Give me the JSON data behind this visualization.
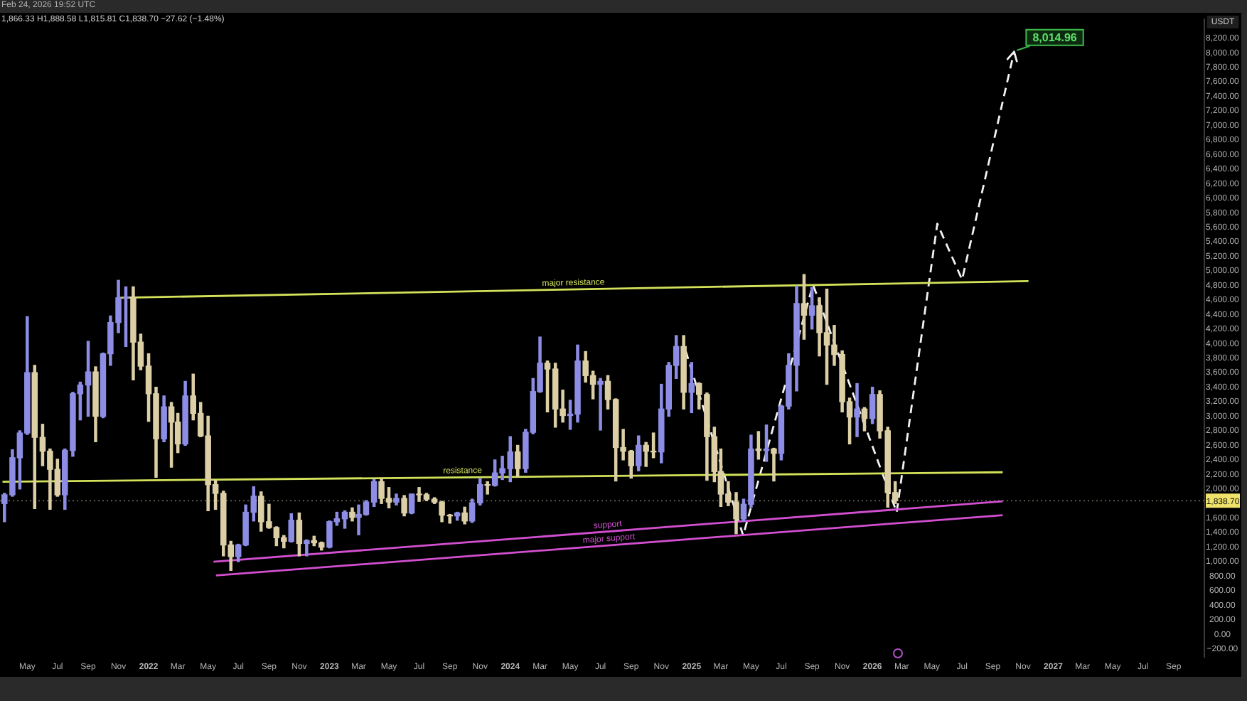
{
  "chart_data": {
    "type": "candlestick",
    "title": "Feb 24, 2026 19:52 UTC",
    "subtitle": "1,866.33 H1,888.58 L1,815.81 C1,838.70 −27.62 (−1.48%)",
    "ylabel": "USDT",
    "x": [
      "2021-03-16",
      "2021-04-01",
      "2021-04-16",
      "2021-05-01",
      "2021-05-16",
      "2021-06-01",
      "2021-06-16",
      "2021-07-01",
      "2021-07-16",
      "2021-08-01",
      "2021-08-16",
      "2021-09-01",
      "2021-09-16",
      "2021-10-01",
      "2021-10-16",
      "2021-11-01",
      "2021-11-16",
      "2021-12-01",
      "2021-12-16",
      "2022-01-01",
      "2022-01-16",
      "2022-02-01",
      "2022-02-16",
      "2022-03-01",
      "2022-03-16",
      "2022-04-01",
      "2022-04-16",
      "2022-05-01",
      "2022-05-16",
      "2022-06-01",
      "2022-06-16",
      "2022-07-01",
      "2022-07-16",
      "2022-08-01",
      "2022-08-16",
      "2022-09-01",
      "2022-09-16",
      "2022-10-01",
      "2022-10-16",
      "2022-11-01",
      "2022-11-16",
      "2022-12-01",
      "2022-12-16",
      "2023-01-01",
      "2023-01-16",
      "2023-02-01",
      "2023-02-16",
      "2023-03-01",
      "2023-03-16",
      "2023-04-01",
      "2023-04-16",
      "2023-05-01",
      "2023-05-16",
      "2023-06-01",
      "2023-06-16",
      "2023-07-01",
      "2023-07-16",
      "2023-08-01",
      "2023-08-16",
      "2023-09-01",
      "2023-09-16",
      "2023-10-01",
      "2023-10-16",
      "2023-11-01",
      "2023-11-16",
      "2023-12-01",
      "2023-12-16",
      "2024-01-01",
      "2024-01-16",
      "2024-02-01",
      "2024-02-16",
      "2024-03-01",
      "2024-03-16",
      "2024-04-01",
      "2024-04-16",
      "2024-05-01",
      "2024-05-16",
      "2024-06-01",
      "2024-06-16",
      "2024-07-01",
      "2024-07-16",
      "2024-08-01",
      "2024-08-16",
      "2024-09-01",
      "2024-09-16",
      "2024-10-01",
      "2024-10-16",
      "2024-11-01",
      "2024-11-16",
      "2024-12-01",
      "2024-12-16",
      "2025-01-01",
      "2025-01-16",
      "2025-02-01",
      "2025-02-16",
      "2025-03-01",
      "2025-03-16",
      "2025-04-01",
      "2025-04-16",
      "2025-05-01",
      "2025-05-16",
      "2025-06-01",
      "2025-06-16",
      "2025-07-01",
      "2025-07-16",
      "2025-08-01",
      "2025-08-16",
      "2025-09-01",
      "2025-09-16",
      "2025-10-01",
      "2025-10-16",
      "2025-11-01",
      "2025-11-16",
      "2025-12-01",
      "2025-12-16",
      "2026-01-01",
      "2026-01-16",
      "2026-02-01",
      "2026-02-16"
    ],
    "ohlc": [
      [
        1800,
        1940,
        1550,
        1920
      ],
      [
        1920,
        2540,
        1900,
        2430
      ],
      [
        2430,
        2800,
        2000,
        2770
      ],
      [
        2770,
        4370,
        2750,
        3600
      ],
      [
        3600,
        3700,
        1730,
        2710
      ],
      [
        2710,
        2890,
        2320,
        2520
      ],
      [
        2520,
        2550,
        1720,
        2270
      ],
      [
        2270,
        2410,
        1900,
        1920
      ],
      [
        1920,
        2550,
        1720,
        2530
      ],
      [
        2530,
        3330,
        2450,
        3310
      ],
      [
        3310,
        3470,
        2950,
        3430
      ],
      [
        3430,
        4030,
        3000,
        3610
      ],
      [
        3610,
        3680,
        2650,
        3000
      ],
      [
        3000,
        3870,
        2980,
        3860
      ],
      [
        3860,
        4380,
        3700,
        4290
      ],
      [
        4290,
        4870,
        4150,
        4630
      ],
      [
        4630,
        4780,
        3960,
        4640
      ],
      [
        4640,
        4780,
        3500,
        4020
      ],
      [
        4020,
        4130,
        3640,
        3690
      ],
      [
        3690,
        3860,
        2930,
        3310
      ],
      [
        3310,
        3400,
        2160,
        2690
      ],
      [
        2690,
        3280,
        2650,
        3130
      ],
      [
        3130,
        3190,
        2300,
        2920
      ],
      [
        2920,
        3040,
        2500,
        2620
      ],
      [
        2620,
        3480,
        2600,
        3280
      ],
      [
        3280,
        3580,
        2950,
        3040
      ],
      [
        3040,
        3190,
        2720,
        2730
      ],
      [
        2730,
        3000,
        1700,
        2060
      ],
      [
        2060,
        2120,
        1720,
        1940
      ],
      [
        1940,
        1970,
        1080,
        1230
      ],
      [
        1230,
        1280,
        880,
        1070
      ],
      [
        1070,
        1240,
        1000,
        1230
      ],
      [
        1230,
        1780,
        1220,
        1680
      ],
      [
        1680,
        2030,
        1560,
        1900
      ],
      [
        1900,
        1960,
        1420,
        1550
      ],
      [
        1550,
        1790,
        1460,
        1470
      ],
      [
        1470,
        1480,
        1220,
        1330
      ],
      [
        1330,
        1360,
        1190,
        1280
      ],
      [
        1280,
        1660,
        1270,
        1570
      ],
      [
        1570,
        1670,
        1080,
        1250
      ],
      [
        1250,
        1300,
        1080,
        1290
      ],
      [
        1290,
        1350,
        1220,
        1260
      ],
      [
        1260,
        1270,
        1160,
        1200
      ],
      [
        1200,
        1560,
        1190,
        1550
      ],
      [
        1550,
        1680,
        1500,
        1590
      ],
      [
        1590,
        1700,
        1460,
        1680
      ],
      [
        1680,
        1740,
        1560,
        1610
      ],
      [
        1610,
        1780,
        1370,
        1650
      ],
      [
        1650,
        1840,
        1640,
        1820
      ],
      [
        1820,
        2130,
        1760,
        2100
      ],
      [
        2100,
        2140,
        1800,
        1870
      ],
      [
        1870,
        2020,
        1740,
        1820
      ],
      [
        1820,
        1930,
        1780,
        1870
      ],
      [
        1870,
        1910,
        1630,
        1670
      ],
      [
        1670,
        1930,
        1660,
        1930
      ],
      [
        1930,
        2020,
        1830,
        1920
      ],
      [
        1920,
        1940,
        1840,
        1860
      ],
      [
        1860,
        1880,
        1800,
        1820
      ],
      [
        1820,
        1830,
        1550,
        1640
      ],
      [
        1640,
        1650,
        1530,
        1630
      ],
      [
        1630,
        1680,
        1570,
        1670
      ],
      [
        1670,
        1750,
        1520,
        1560
      ],
      [
        1560,
        1860,
        1540,
        1810
      ],
      [
        1810,
        2140,
        1780,
        2060
      ],
      [
        2060,
        2100,
        1930,
        2050
      ],
      [
        2050,
        2400,
        2040,
        2220
      ],
      [
        2220,
        2450,
        2130,
        2280
      ],
      [
        2280,
        2720,
        2100,
        2510
      ],
      [
        2510,
        2600,
        2170,
        2280
      ],
      [
        2280,
        2820,
        2230,
        2780
      ],
      [
        2780,
        3520,
        2760,
        3340
      ],
      [
        3340,
        4090,
        3330,
        3730
      ],
      [
        3730,
        3760,
        3060,
        3650
      ],
      [
        3650,
        3730,
        2850,
        3100
      ],
      [
        3100,
        3360,
        2920,
        3010
      ],
      [
        3010,
        3220,
        2820,
        3030
      ],
      [
        3030,
        3980,
        2920,
        3760
      ],
      [
        3760,
        3890,
        3470,
        3560
      ],
      [
        3560,
        3620,
        3240,
        3440
      ],
      [
        3440,
        3520,
        2810,
        3480
      ],
      [
        3480,
        3560,
        3100,
        3230
      ],
      [
        3230,
        3240,
        2110,
        2570
      ],
      [
        2570,
        2820,
        2400,
        2520
      ],
      [
        2520,
        2530,
        2150,
        2320
      ],
      [
        2320,
        2730,
        2250,
        2600
      ],
      [
        2600,
        2640,
        2310,
        2520
      ],
      [
        2520,
        2770,
        2430,
        2510
      ],
      [
        2510,
        3440,
        2360,
        3100
      ],
      [
        3100,
        3740,
        3000,
        3700
      ],
      [
        3700,
        4110,
        3520,
        3960
      ],
      [
        3960,
        4110,
        3100,
        3330
      ],
      [
        3330,
        3740,
        3050,
        3450
      ],
      [
        3450,
        3460,
        3100,
        3300
      ],
      [
        3300,
        3320,
        2120,
        2720
      ],
      [
        2720,
        2850,
        2100,
        2240
      ],
      [
        2240,
        2550,
        1760,
        1930
      ],
      [
        1930,
        2100,
        1770,
        1820
      ],
      [
        1820,
        1950,
        1385,
        1590
      ],
      [
        1590,
        1860,
        1560,
        1790
      ],
      [
        1790,
        2740,
        1750,
        2550
      ],
      [
        2550,
        2790,
        2410,
        2530
      ],
      [
        2530,
        2880,
        2380,
        2550
      ],
      [
        2550,
        2560,
        2110,
        2490
      ],
      [
        2490,
        3150,
        2400,
        3140
      ],
      [
        3140,
        3860,
        3100,
        3700
      ],
      [
        3700,
        4790,
        3350,
        4550
      ],
      [
        4550,
        4950,
        4060,
        4390
      ],
      [
        4390,
        4770,
        4200,
        4520
      ],
      [
        4520,
        4630,
        3830,
        4150
      ],
      [
        4150,
        4750,
        3440,
        3980
      ],
      [
        3980,
        4250,
        3700,
        3850
      ],
      [
        3850,
        3900,
        3060,
        3200
      ],
      [
        3200,
        3250,
        2620,
        2990
      ],
      [
        2990,
        3450,
        2720,
        3100
      ],
      [
        3100,
        3120,
        2800,
        2970
      ],
      [
        2970,
        3400,
        2900,
        3300
      ],
      [
        3300,
        3350,
        2700,
        2800
      ],
      [
        2800,
        2850,
        1750,
        1950
      ],
      [
        1950,
        2100,
        1800,
        1838.7
      ]
    ],
    "colors": [
      "#8d8de6",
      "#8d8de6",
      "#8d8de6",
      "#8d8de6",
      "#dccfa5",
      "#dccfa5",
      "#dccfa5",
      "#dccfa5",
      "#8d8de6",
      "#8d8de6",
      "#8d8de6",
      "#8d8de6",
      "#dccfa5",
      "#8d8de6",
      "#8d8de6",
      "#8d8de6",
      "#8d8de6",
      "#dccfa5",
      "#dccfa5",
      "#dccfa5",
      "#dccfa5",
      "#8d8de6",
      "#dccfa5",
      "#dccfa5",
      "#8d8de6",
      "#dccfa5",
      "#dccfa5",
      "#dccfa5",
      "#dccfa5",
      "#dccfa5",
      "#dccfa5",
      "#8d8de6",
      "#8d8de6",
      "#8d8de6",
      "#dccfa5",
      "#dccfa5",
      "#dccfa5",
      "#dccfa5",
      "#8d8de6",
      "#dccfa5",
      "#8d8de6",
      "#dccfa5",
      "#dccfa5",
      "#8d8de6",
      "#8d8de6",
      "#8d8de6",
      "#dccfa5",
      "#8d8de6",
      "#8d8de6",
      "#8d8de6",
      "#dccfa5",
      "#dccfa5",
      "#8d8de6",
      "#dccfa5",
      "#8d8de6",
      "#dccfa5",
      "#dccfa5",
      "#dccfa5",
      "#dccfa5",
      "#dccfa5",
      "#8d8de6",
      "#dccfa5",
      "#8d8de6",
      "#8d8de6",
      "#dccfa5",
      "#8d8de6",
      "#8d8de6",
      "#8d8de6",
      "#dccfa5",
      "#8d8de6",
      "#8d8de6",
      "#8d8de6",
      "#dccfa5",
      "#dccfa5",
      "#dccfa5",
      "#8d8de6",
      "#8d8de6",
      "#dccfa5",
      "#dccfa5",
      "#8d8de6",
      "#dccfa5",
      "#dccfa5",
      "#dccfa5",
      "#dccfa5",
      "#8d8de6",
      "#dccfa5",
      "#dccfa5",
      "#8d8de6",
      "#8d8de6",
      "#8d8de6",
      "#dccfa5",
      "#8d8de6",
      "#dccfa5",
      "#dccfa5",
      "#dccfa5",
      "#dccfa5",
      "#dccfa5",
      "#dccfa5",
      "#8d8de6",
      "#8d8de6",
      "#dccfa5",
      "#8d8de6",
      "#dccfa5",
      "#8d8de6",
      "#8d8de6",
      "#8d8de6",
      "#dccfa5",
      "#8d8de6",
      "#dccfa5",
      "#dccfa5",
      "#dccfa5",
      "#dccfa5",
      "#dccfa5",
      "#8d8de6",
      "#dccfa5",
      "#8d8de6",
      "#dccfa5",
      "#dccfa5",
      "#dccfa5"
    ],
    "series": [
      {
        "type": "line",
        "name": "major resistance",
        "color": "#d3e25a",
        "x": [
          "2021-11-01",
          "2026-11-12"
        ],
        "values": [
          4630,
          4860
        ]
      },
      {
        "type": "line",
        "name": "resistance",
        "color": "#d3e25a",
        "x": [
          "2021-03-12",
          "2026-09-21"
        ],
        "values": [
          2100,
          2230
        ]
      },
      {
        "type": "line",
        "name": "support",
        "color": "#d24fd0",
        "x": [
          "2022-05-12",
          "2026-09-21"
        ],
        "values": [
          1000,
          1830
        ]
      },
      {
        "type": "line",
        "name": "major support",
        "color": "#d24fd0",
        "x": [
          "2022-05-17",
          "2026-09-21"
        ],
        "values": [
          810,
          1640
        ]
      },
      {
        "type": "line",
        "color": "#f2f2f2",
        "line_style": "dashed",
        "x": [
          "2024-12-20",
          "2025-04-15",
          "2025-09-03",
          "2026-02-19",
          "2026-05-12",
          "2026-07-01",
          "2026-10-14"
        ],
        "values": [
          3900,
          1360,
          4810,
          1680,
          5650,
          4880,
          8014.96
        ]
      }
    ],
    "xlim": [
      "2021-03-07",
      "2027-11-02"
    ],
    "xticks": [
      {
        "value": "2021-05-01",
        "label": "May"
      },
      {
        "value": "2021-07-01",
        "label": "Jul"
      },
      {
        "value": "2021-09-01",
        "label": "Sep"
      },
      {
        "value": "2021-11-01",
        "label": "Nov"
      },
      {
        "value": "2022-01-01",
        "label": "2022"
      },
      {
        "value": "2022-03-01",
        "label": "Mar"
      },
      {
        "value": "2022-05-01",
        "label": "May"
      },
      {
        "value": "2022-07-01",
        "label": "Jul"
      },
      {
        "value": "2022-09-01",
        "label": "Sep"
      },
      {
        "value": "2022-11-01",
        "label": "Nov"
      },
      {
        "value": "2023-01-01",
        "label": "2023"
      },
      {
        "value": "2023-03-01",
        "label": "Mar"
      },
      {
        "value": "2023-05-01",
        "label": "May"
      },
      {
        "value": "2023-07-01",
        "label": "Jul"
      },
      {
        "value": "2023-09-01",
        "label": "Sep"
      },
      {
        "value": "2023-11-01",
        "label": "Nov"
      },
      {
        "value": "2024-01-01",
        "label": "2024"
      },
      {
        "value": "2024-03-01",
        "label": "Mar"
      },
      {
        "value": "2024-05-01",
        "label": "May"
      },
      {
        "value": "2024-07-01",
        "label": "Jul"
      },
      {
        "value": "2024-09-01",
        "label": "Sep"
      },
      {
        "value": "2024-11-01",
        "label": "Nov"
      },
      {
        "value": "2025-01-01",
        "label": "2025"
      },
      {
        "value": "2025-03-01",
        "label": "Mar"
      },
      {
        "value": "2025-05-01",
        "label": "May"
      },
      {
        "value": "2025-07-01",
        "label": "Jul"
      },
      {
        "value": "2025-09-01",
        "label": "Sep"
      },
      {
        "value": "2025-11-01",
        "label": "Nov"
      },
      {
        "value": "2026-01-01",
        "label": "2026"
      },
      {
        "value": "2026-03-01",
        "label": "Mar"
      },
      {
        "value": "2026-05-01",
        "label": "May"
      },
      {
        "value": "2026-07-01",
        "label": "Jul"
      },
      {
        "value": "2026-09-01",
        "label": "Sep"
      },
      {
        "value": "2026-11-01",
        "label": "Nov"
      },
      {
        "value": "2027-01-01",
        "label": "2027"
      },
      {
        "value": "2027-03-01",
        "label": "Mar"
      },
      {
        "value": "2027-05-01",
        "label": "May"
      },
      {
        "value": "2027-07-01",
        "label": "Jul"
      },
      {
        "value": "2027-09-01",
        "label": "Sep"
      }
    ],
    "ylim": [
      -310,
      8460
    ],
    "yticks": [
      {
        "value": -200,
        "label": "−200.00"
      },
      {
        "value": 0,
        "label": "0.00"
      },
      {
        "value": 200,
        "label": "200.00"
      },
      {
        "value": 400,
        "label": "400.00"
      },
      {
        "value": 600,
        "label": "600.00"
      },
      {
        "value": 800,
        "label": "800.00"
      },
      {
        "value": 1000,
        "label": "1,000.00"
      },
      {
        "value": 1200,
        "label": "1,200.00"
      },
      {
        "value": 1400,
        "label": "1,400.00"
      },
      {
        "value": 1600,
        "label": "1,600.00"
      },
      {
        "value": 2000,
        "label": "2,000.00"
      },
      {
        "value": 2200,
        "label": "2,200.00"
      },
      {
        "value": 2400,
        "label": "2,400.00"
      },
      {
        "value": 2600,
        "label": "2,600.00"
      },
      {
        "value": 2800,
        "label": "2,800.00"
      },
      {
        "value": 3000,
        "label": "3,000.00"
      },
      {
        "value": 3200,
        "label": "3,200.00"
      },
      {
        "value": 3400,
        "label": "3,400.00"
      },
      {
        "value": 3600,
        "label": "3,600.00"
      },
      {
        "value": 3800,
        "label": "3,800.00"
      },
      {
        "value": 4000,
        "label": "4,000.00"
      },
      {
        "value": 4200,
        "label": "4,200.00"
      },
      {
        "value": 4400,
        "label": "4,400.00"
      },
      {
        "value": 4600,
        "label": "4,600.00"
      },
      {
        "value": 4800,
        "label": "4,800.00"
      },
      {
        "value": 5000,
        "label": "5,000.00"
      },
      {
        "value": 5200,
        "label": "5,200.00"
      },
      {
        "value": 5400,
        "label": "5,400.00"
      },
      {
        "value": 5600,
        "label": "5,600.00"
      },
      {
        "value": 5800,
        "label": "5,800.00"
      },
      {
        "value": 6000,
        "label": "6,000.00"
      },
      {
        "value": 6200,
        "label": "6,200.00"
      },
      {
        "value": 6400,
        "label": "6,400.00"
      },
      {
        "value": 6600,
        "label": "6,600.00"
      },
      {
        "value": 6800,
        "label": "6,800.00"
      },
      {
        "value": 7000,
        "label": "7,000.00"
      },
      {
        "value": 7200,
        "label": "7,200.00"
      },
      {
        "value": 7400,
        "label": "7,400.00"
      },
      {
        "value": 7600,
        "label": "7,600.00"
      },
      {
        "value": 7800,
        "label": "7,800.00"
      },
      {
        "value": 8000,
        "label": "8,000.00"
      },
      {
        "value": 8200,
        "label": "8,200.00"
      }
    ],
    "ref_lines": [
      {
        "axis": "y",
        "value": 1838.7,
        "label": "1,838.70",
        "color": "#5a584c",
        "line_style": "dotted"
      }
    ],
    "annotations": [
      {
        "text": "8,014.96",
        "x": "2026-10-14",
        "y": 8014.96
      }
    ]
  }
}
